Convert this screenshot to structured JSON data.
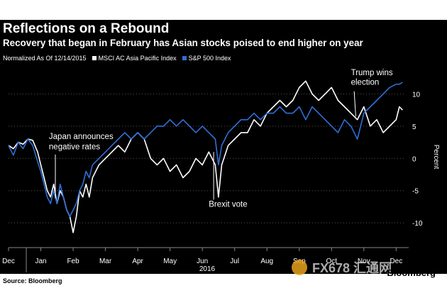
{
  "header": {
    "title": "Reflections on a Rebound",
    "subtitle": "Recovery that began in February has Asian stocks poised to end higher on year"
  },
  "legend": {
    "note": "Normalized As Of 12/14/2015",
    "items": [
      {
        "label": "MSCI AC Asia Pacific Index",
        "color": "#ffffff"
      },
      {
        "label": "S&P 500 Index",
        "color": "#2f6fd6"
      }
    ]
  },
  "footer": {
    "source": "Source: Bloomberg",
    "brand": "Bloomberg",
    "watermark": "FX678 汇通网"
  },
  "chart_data": {
    "type": "line",
    "title": "Reflections on a Rebound",
    "xlabel": "2016",
    "ylabel": "Percent",
    "x_ticks": [
      "Dec",
      "Jan",
      "Feb",
      "Mar",
      "Apr",
      "May",
      "Jun",
      "Jul",
      "Aug",
      "Sep",
      "Oct",
      "Nov",
      "Dec"
    ],
    "x_tick_pos": [
      0,
      1,
      2,
      3,
      4,
      5,
      6,
      7,
      8,
      9,
      10,
      11,
      12
    ],
    "y_ticks": [
      10,
      5,
      0,
      -5,
      -10
    ],
    "ylim": [
      -13.5,
      14
    ],
    "xlim": [
      0,
      12.3
    ],
    "annotations": [
      {
        "text": "Japan announces",
        "x": 1.25,
        "y": 3.0
      },
      {
        "text": "negative rates",
        "x": 1.25,
        "y": 1.4
      },
      {
        "text": "Brexit vote",
        "x": 6.2,
        "y": -7.5
      },
      {
        "text": "Trump wins",
        "x": 10.6,
        "y": 12.9
      },
      {
        "text": "election",
        "x": 10.6,
        "y": 11.4
      }
    ],
    "series": [
      {
        "name": "MSCI AC Asia Pacific Index",
        "color": "#ffffff",
        "x": [
          0,
          0.15,
          0.3,
          0.45,
          0.6,
          0.75,
          0.9,
          1.0,
          1.1,
          1.2,
          1.3,
          1.4,
          1.5,
          1.6,
          1.7,
          1.8,
          1.9,
          2.0,
          2.1,
          2.2,
          2.3,
          2.4,
          2.5,
          2.6,
          2.8,
          3.0,
          3.2,
          3.4,
          3.6,
          3.8,
          4.0,
          4.2,
          4.4,
          4.6,
          4.8,
          5.0,
          5.2,
          5.4,
          5.6,
          5.8,
          6.0,
          6.2,
          6.4,
          6.5,
          6.6,
          6.8,
          7.0,
          7.2,
          7.4,
          7.6,
          7.8,
          8.0,
          8.2,
          8.4,
          8.6,
          8.8,
          9.0,
          9.2,
          9.4,
          9.6,
          9.8,
          10.0,
          10.2,
          10.4,
          10.6,
          10.8,
          11.0,
          11.2,
          11.4,
          11.6,
          11.8,
          12.0,
          12.1,
          12.2
        ],
        "y": [
          2,
          1.5,
          2.5,
          2.2,
          3,
          2.8,
          1,
          -1,
          -3,
          -5,
          -6,
          -4,
          -7,
          -5,
          -6,
          -8,
          -9,
          -11.5,
          -9,
          -5,
          -6,
          -4,
          -6,
          -3,
          -1,
          0,
          1,
          2,
          1,
          3,
          4,
          3,
          0,
          -1,
          0,
          -2,
          -1,
          -3,
          -2,
          0,
          -1,
          1,
          -1,
          -6,
          -1,
          2,
          3,
          4,
          4,
          6,
          5,
          7,
          8,
          9,
          8,
          9,
          11,
          12,
          10,
          9,
          10,
          11,
          9,
          8,
          7,
          6,
          8,
          5,
          6,
          4,
          5,
          6,
          8,
          7.5
        ]
      },
      {
        "name": "S&P 500 Index",
        "color": "#2f6fd6",
        "x": [
          0,
          0.15,
          0.3,
          0.45,
          0.6,
          0.75,
          0.9,
          1.0,
          1.1,
          1.2,
          1.3,
          1.4,
          1.5,
          1.6,
          1.7,
          1.8,
          1.9,
          2.0,
          2.1,
          2.2,
          2.3,
          2.4,
          2.5,
          2.6,
          2.8,
          3.0,
          3.2,
          3.4,
          3.6,
          3.8,
          4.0,
          4.2,
          4.4,
          4.6,
          4.8,
          5.0,
          5.2,
          5.4,
          5.6,
          5.8,
          6.0,
          6.2,
          6.4,
          6.5,
          6.6,
          6.8,
          7.0,
          7.2,
          7.4,
          7.6,
          7.8,
          8.0,
          8.2,
          8.4,
          8.6,
          8.8,
          9.0,
          9.2,
          9.4,
          9.6,
          9.8,
          10.0,
          10.2,
          10.4,
          10.6,
          10.8,
          11.0,
          11.2,
          11.4,
          11.6,
          11.8,
          12.0,
          12.1,
          12.2
        ],
        "y": [
          2,
          0.5,
          2.5,
          1.5,
          3,
          2,
          -0.5,
          -2,
          -4,
          -6,
          -7,
          -5,
          -7,
          -4,
          -6,
          -8,
          -9,
          -8,
          -7,
          -5,
          -4,
          -2,
          -3,
          -1,
          0,
          1,
          2,
          3,
          4,
          3,
          4,
          3,
          4,
          5,
          5,
          6,
          5,
          6,
          5,
          4,
          5,
          4,
          3,
          -1,
          2,
          4,
          5,
          6,
          6,
          7,
          6,
          7,
          7,
          8,
          7,
          7,
          8,
          6,
          8,
          7,
          6,
          5,
          4,
          6,
          5,
          3,
          7,
          8,
          9,
          10,
          11,
          11.5,
          11.5,
          11.8
        ]
      }
    ]
  }
}
